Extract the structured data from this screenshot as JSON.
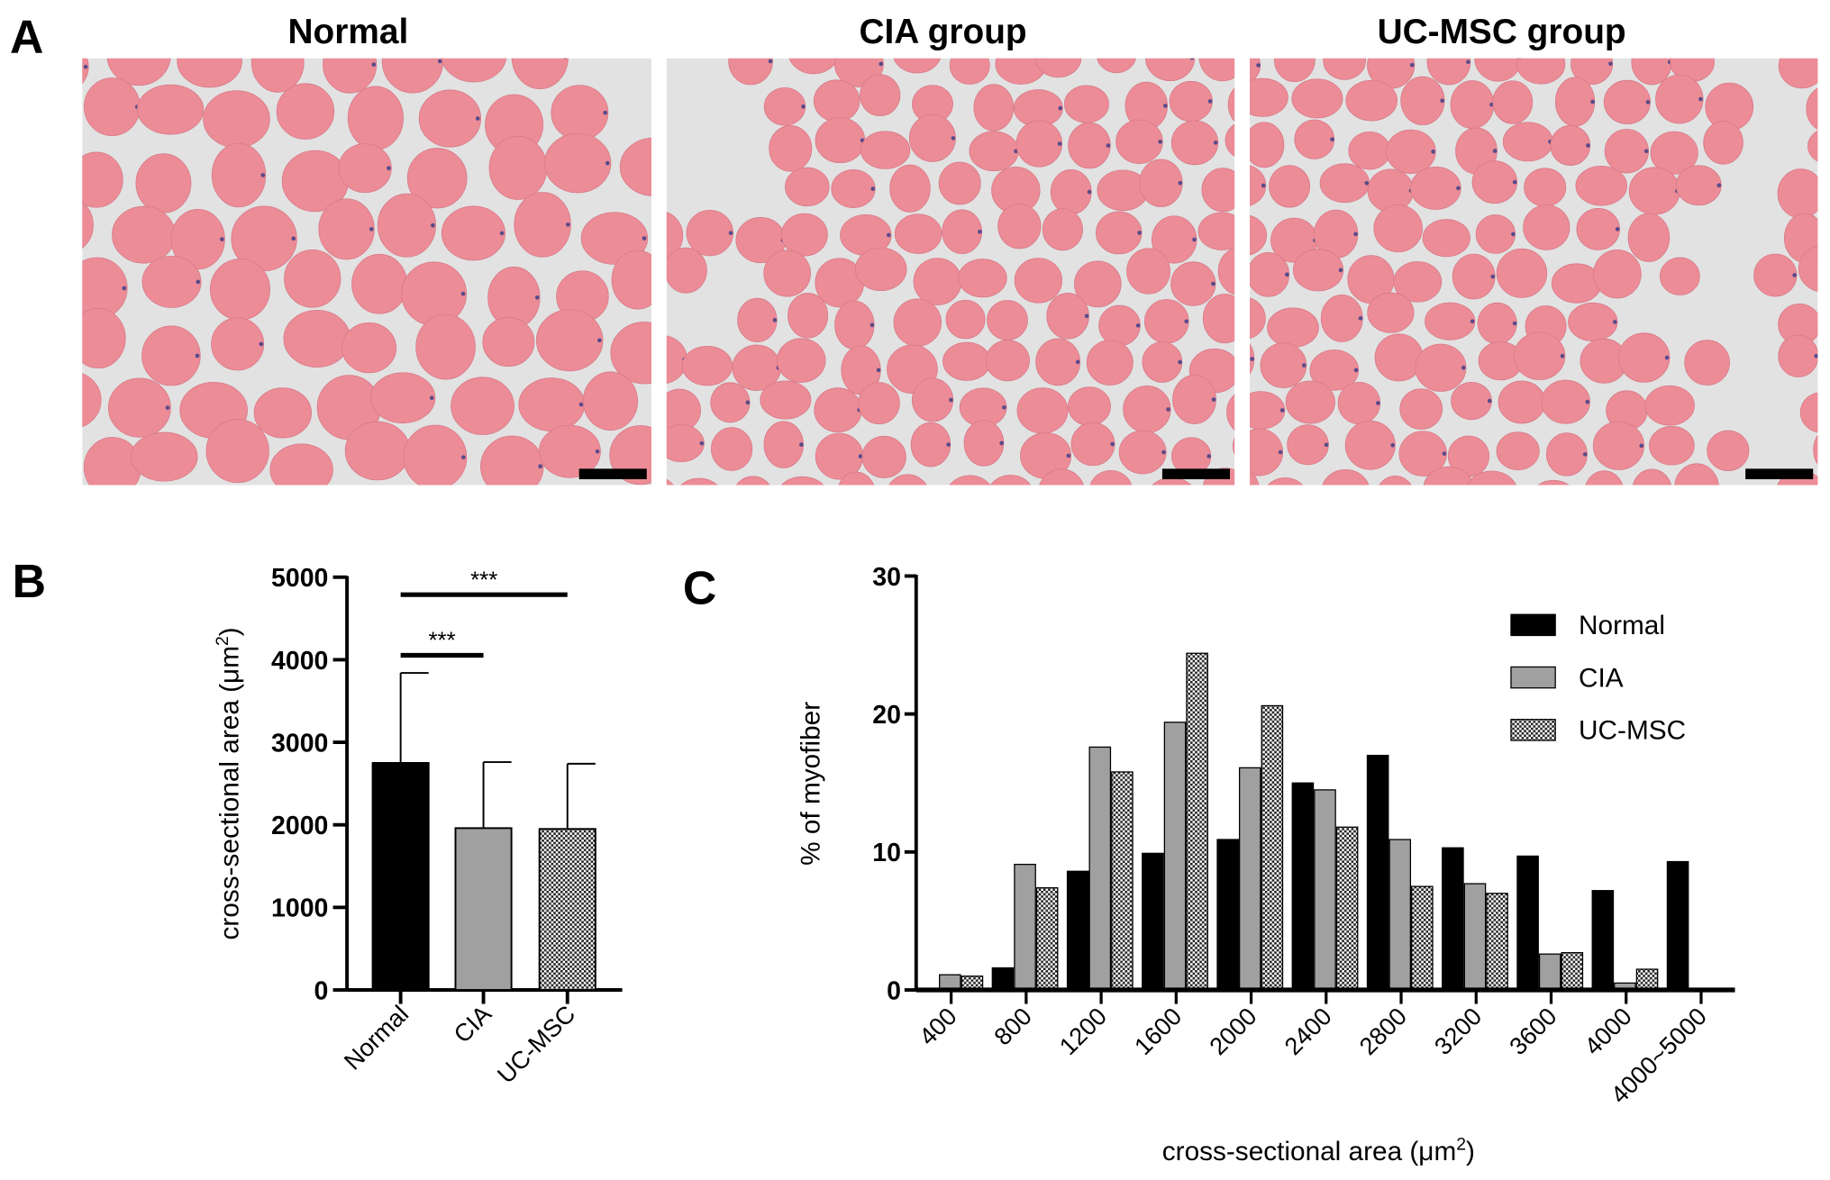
{
  "panel_a": {
    "letter": "A",
    "titles": [
      "Normal",
      "CIA group",
      "UC-MSC group"
    ]
  },
  "colors": {
    "normal": "#000000",
    "cia": "#a0a0a0",
    "ucmsc_pattern": "checkered",
    "tissue": "#ec8c97",
    "background": "#e2e2e2"
  },
  "chart_data": [
    {
      "type": "bar",
      "panel": "B",
      "categories": [
        "Normal",
        "CIA",
        "UC-MSC"
      ],
      "values": [
        2750,
        1960,
        1950
      ],
      "error_upper": [
        3840,
        2760,
        2740
      ],
      "ylabel": "cross-sectional area (μm",
      "ylabel_sup": "2",
      "ylabel_end": ")",
      "ylim": [
        0,
        5000
      ],
      "yticks": [
        "0",
        "1000",
        "2000",
        "3000",
        "4000",
        "5000"
      ],
      "significance": [
        {
          "from": "Normal",
          "to": "CIA",
          "label": "***"
        },
        {
          "from": "Normal",
          "to": "UC-MSC",
          "label": "***"
        }
      ]
    },
    {
      "type": "bar",
      "panel": "C",
      "categories": [
        "400",
        "800",
        "1200",
        "1600",
        "2000",
        "2400",
        "2800",
        "3200",
        "3600",
        "4000",
        "4000~5000"
      ],
      "series": [
        {
          "name": "Normal",
          "values": [
            0,
            1.6,
            8.6,
            9.9,
            10.9,
            15.0,
            17.0,
            10.3,
            9.7,
            7.2,
            9.3
          ]
        },
        {
          "name": "CIA",
          "values": [
            1.1,
            9.1,
            17.6,
            19.4,
            16.1,
            14.5,
            10.9,
            7.7,
            2.6,
            0.5,
            0
          ]
        },
        {
          "name": "UC-MSC",
          "values": [
            1.0,
            7.4,
            15.8,
            24.4,
            20.6,
            11.8,
            7.5,
            7.0,
            2.7,
            1.5,
            0
          ]
        }
      ],
      "xlabel": "cross-sectional area (μm",
      "xlabel_sup": "2",
      "xlabel_end": ")",
      "ylabel": "% of myofiber",
      "ylim": [
        0,
        30
      ],
      "yticks": [
        "0",
        "10",
        "20",
        "30"
      ],
      "legend_position": "top-right"
    }
  ]
}
